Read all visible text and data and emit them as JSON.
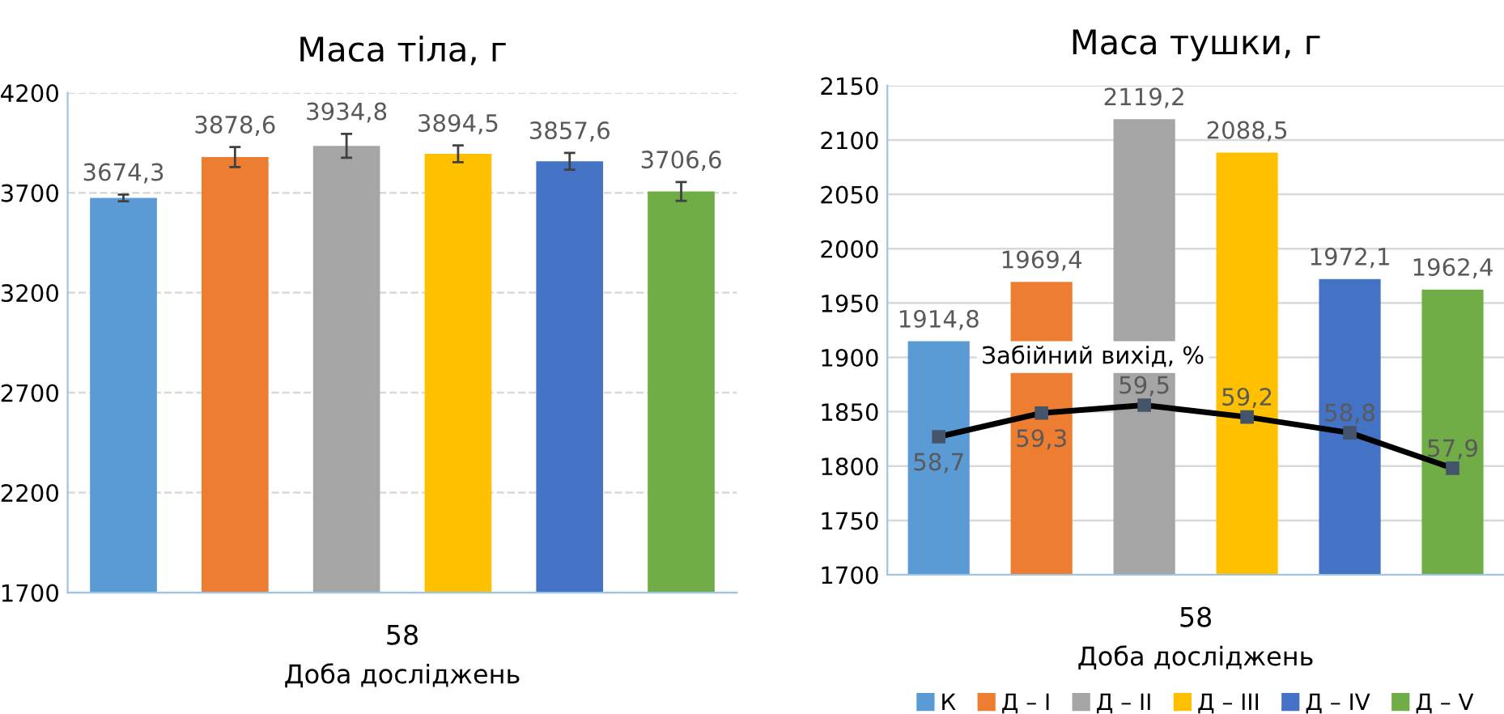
{
  "chart_data": [
    {
      "type": "bar",
      "title": "Маса тіла, г",
      "xlabel": "Доба досліджень",
      "categories": [
        "58"
      ],
      "series": [
        {
          "color": "#5b9bd5",
          "values": [
            3674.3
          ],
          "value_labels": [
            "3674,3"
          ],
          "errors": [
            17
          ]
        },
        {
          "color": "#ed7d31",
          "values": [
            3878.6
          ],
          "value_labels": [
            "3878,6"
          ],
          "errors": [
            50
          ]
        },
        {
          "color": "#a5a5a5",
          "values": [
            3934.8
          ],
          "value_labels": [
            "3934,8"
          ],
          "errors": [
            60
          ]
        },
        {
          "color": "#ffc000",
          "values": [
            3894.5
          ],
          "value_labels": [
            "3894,5"
          ],
          "errors": [
            42
          ]
        },
        {
          "color": "#4472c4",
          "values": [
            3857.6
          ],
          "value_labels": [
            "3857,6"
          ],
          "errors": [
            42
          ]
        },
        {
          "color": "#70ad47",
          "values": [
            3706.6
          ],
          "value_labels": [
            "3706,6"
          ],
          "errors": [
            47
          ]
        }
      ],
      "ylim": [
        1700,
        4200
      ],
      "yticks": [
        1700,
        2200,
        2700,
        3200,
        3700,
        4200
      ],
      "grid": "y",
      "legend": false
    },
    {
      "type": "bar",
      "title": "Маса тушки, г",
      "xlabel": "Доба досліджень",
      "categories": [
        "58"
      ],
      "series": [
        {
          "name": "К",
          "color": "#5b9bd5",
          "values": [
            1914.8
          ],
          "value_labels": [
            "1914,8"
          ]
        },
        {
          "name": "Д – I",
          "color": "#ed7d31",
          "values": [
            1969.4
          ],
          "value_labels": [
            "1969,4"
          ]
        },
        {
          "name": "Д – II",
          "color": "#a5a5a5",
          "values": [
            2119.2
          ],
          "value_labels": [
            "2119,2"
          ]
        },
        {
          "name": "Д – III",
          "color": "#ffc000",
          "values": [
            2088.5
          ],
          "value_labels": [
            "2088,5"
          ]
        },
        {
          "name": "Д – IV",
          "color": "#4472c4",
          "values": [
            1972.1
          ],
          "value_labels": [
            "1972,1"
          ]
        },
        {
          "name": "Д – V",
          "color": "#70ad47",
          "values": [
            1962.4
          ],
          "value_labels": [
            "1962,4"
          ]
        }
      ],
      "ylim": [
        1700,
        2150
      ],
      "yticks": [
        1700,
        1750,
        1800,
        1850,
        1900,
        1950,
        2000,
        2050,
        2100,
        2150
      ],
      "grid": "y",
      "legend": "bottom"
    },
    {
      "type": "line",
      "categories": [
        null,
        null,
        null,
        null,
        null,
        null
      ],
      "series": [
        {
          "name": "Забійний вихід, %",
          "color": "#000000",
          "values": [
            58.7,
            59.3,
            59.5,
            59.2,
            58.8,
            57.9
          ],
          "value_labels": [
            "58,7",
            "59,3",
            "59,5",
            "59,2",
            "58,8",
            "57,9"
          ]
        }
      ],
      "ylim": [
        55.2,
        67.6
      ],
      "marker": "square",
      "tick_labels": false,
      "grid": false
    }
  ]
}
